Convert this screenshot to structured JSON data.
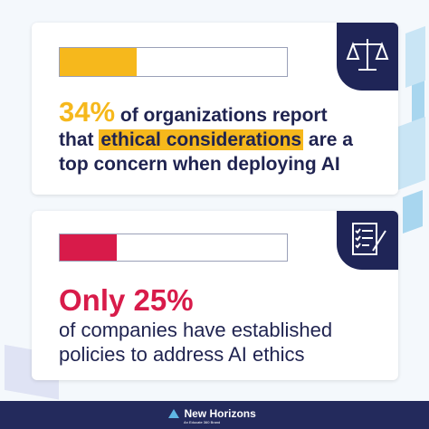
{
  "cards": [
    {
      "value": 34,
      "stat_label": "34%",
      "text_1": "of organizations report that",
      "highlight": "ethical considerations",
      "text_2": "are a top concern when deploying AI"
    },
    {
      "value": 25,
      "stat_label": "Only 25%",
      "text_1": "of companies have established policies to address AI ethics"
    }
  ],
  "footer": {
    "brand": "New Horizons",
    "tagline": "An Educate 360 Brand"
  }
}
